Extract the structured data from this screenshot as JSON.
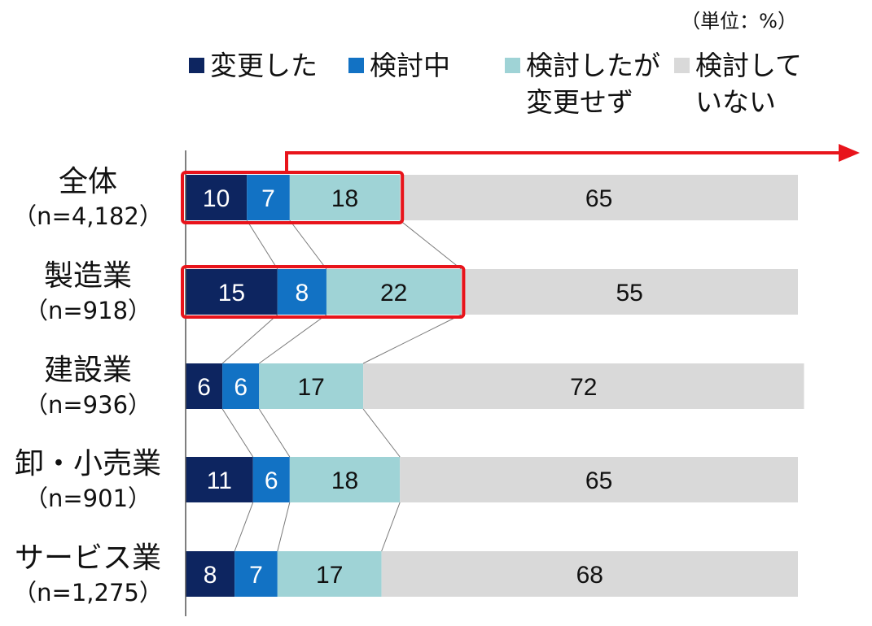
{
  "unit_label": "（単位：%）",
  "chart_data": {
    "type": "bar",
    "orientation": "horizontal",
    "stacked": true,
    "categories": [
      {
        "name": "全体",
        "n": "（n=4,182）"
      },
      {
        "name": "製造業",
        "n": "（n=918）"
      },
      {
        "name": "建設業",
        "n": "（n=936）"
      },
      {
        "name": "卸・小売業",
        "n": "（n=901）"
      },
      {
        "name": "サービス業",
        "n": "（n=1,275）"
      }
    ],
    "series": [
      {
        "name": [
          "変更した"
        ],
        "color": "#0d2560",
        "values": [
          10,
          15,
          6,
          11,
          8
        ]
      },
      {
        "name": [
          "検討中"
        ],
        "color": "#1272c4",
        "values": [
          7,
          8,
          6,
          6,
          7
        ]
      },
      {
        "name": [
          "検討したが",
          "変更せず"
        ],
        "color": "#9fd3d6",
        "values": [
          18,
          22,
          17,
          18,
          17
        ]
      },
      {
        "name": [
          "検討して",
          "いない"
        ],
        "color": "#d9d9d9",
        "values": [
          65,
          55,
          72,
          65,
          68
        ]
      }
    ],
    "xlim": [
      0,
      100
    ],
    "legend_position": "top",
    "highlighted_categories": [
      0,
      1
    ],
    "highlight_color": "#e8141b"
  }
}
